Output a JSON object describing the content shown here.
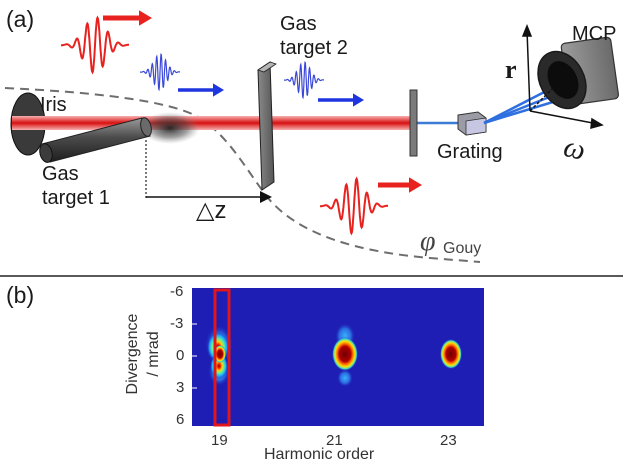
{
  "figure": {
    "panel_a": {
      "tag": "(a)",
      "labels": {
        "iris": "Iris",
        "gas_target_1_line1": "Gas",
        "gas_target_1_line2": "target 1",
        "gas_target_2_line1": "Gas",
        "gas_target_2_line2": "target 2",
        "grating": "Grating",
        "mcp": "MCP",
        "r_axis": "r",
        "omega_axis": "ω",
        "delta_z": "△z",
        "gouy_symbol": "φ",
        "gouy_subscript": "Gouy"
      },
      "colors": {
        "ir_pulse": "#e8231f",
        "xuv_pulse": "#3b48d8",
        "arrow_red": "#e8231f",
        "arrow_blue": "#1f35e0",
        "beam": "#d81a1a",
        "gouy_curve": "#6e6e6e",
        "divider": "#222222"
      }
    },
    "panel_b": {
      "tag": "(b)",
      "ylabel_line1": "Divergence",
      "ylabel_line2": "/ mrad",
      "xlabel": "Harmonic order",
      "y_ticks": [
        "-6",
        "-3",
        "0",
        "3",
        "6"
      ],
      "x_ticks": [
        "19",
        "21",
        "23"
      ],
      "colors": {
        "background": "#1e1eb4",
        "highlight_box": "#e0161b"
      }
    }
  },
  "chart_data": {
    "type": "heatmap",
    "xlabel": "Harmonic order",
    "ylabel": "Divergence / mrad",
    "ylim": [
      -6,
      6
    ],
    "x_ticks": [
      19,
      21,
      23
    ],
    "y_ticks": [
      -6,
      -3,
      0,
      3,
      6
    ],
    "peaks": [
      {
        "harmonic": 19,
        "center_divergence": 0.0,
        "divergence_extent": [
          -4,
          4
        ],
        "highlighted": true
      },
      {
        "harmonic": 21,
        "center_divergence": 0.0,
        "divergence_extent": [
          -2.5,
          2.5
        ]
      },
      {
        "harmonic": 23,
        "center_divergence": 0.0,
        "divergence_extent": [
          -1.5,
          1.5
        ]
      }
    ]
  }
}
